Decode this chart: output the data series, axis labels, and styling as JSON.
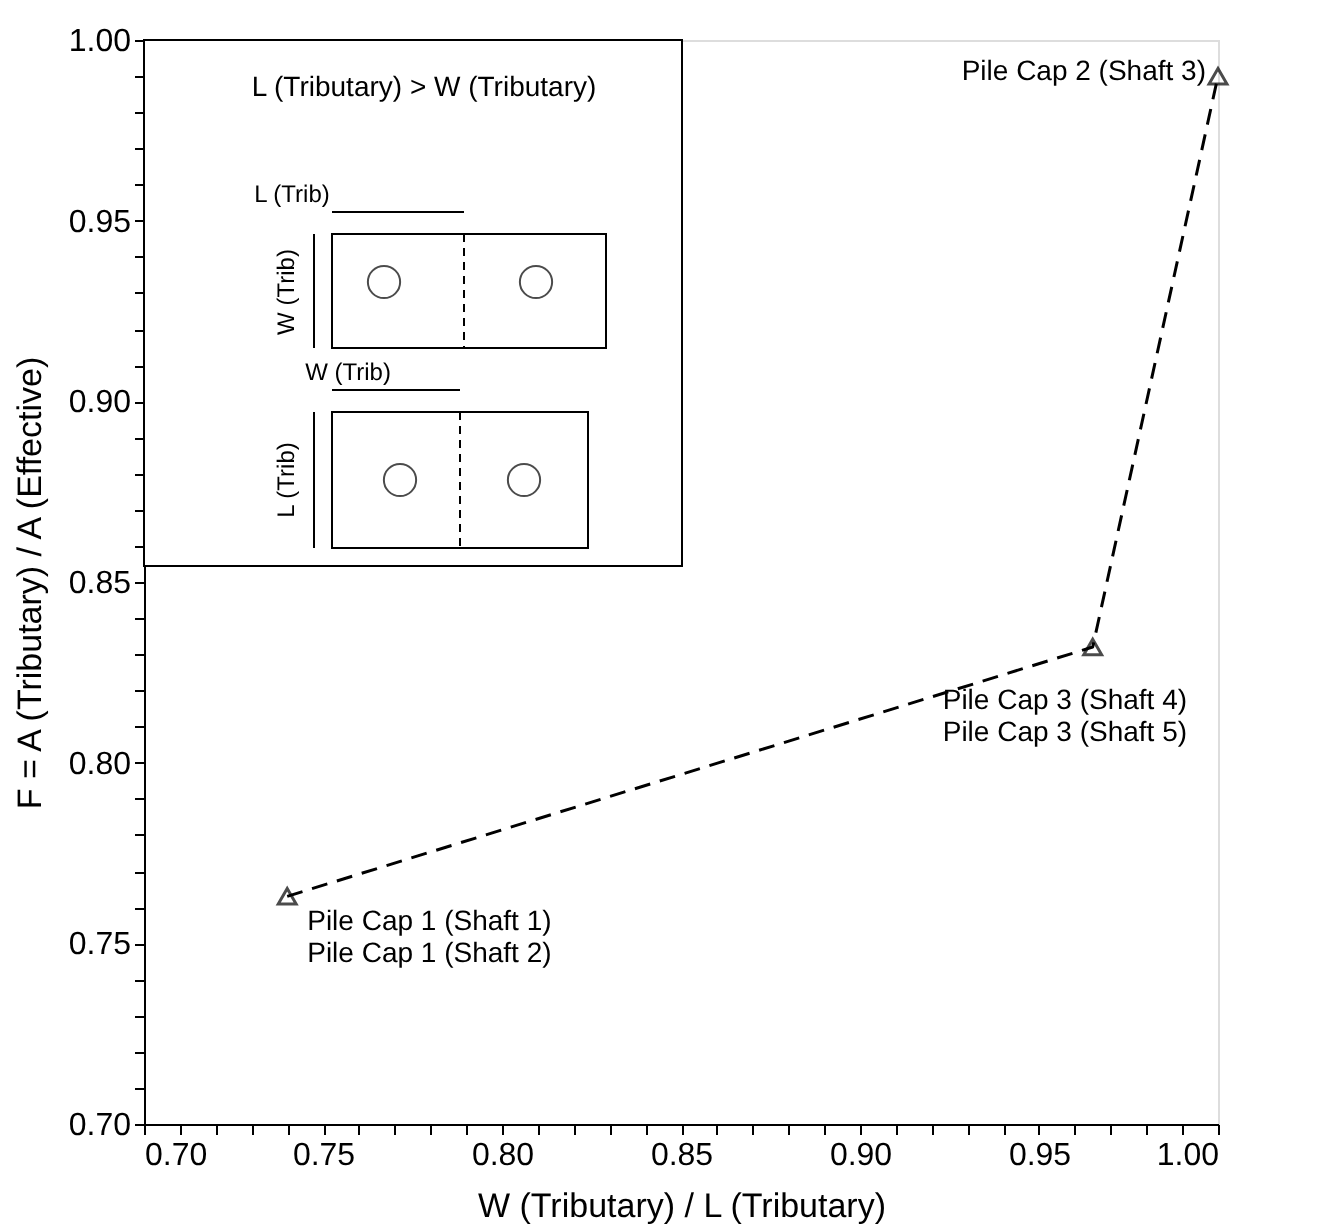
{
  "chart_data": {
    "type": "line",
    "xlabel": "W (Tributary) / L (Tributary)",
    "ylabel": "F = A (Tributary) / A (Effective)",
    "x": [
      0.74,
      0.965,
      1.0
    ],
    "series": [
      {
        "color": "#000000",
        "values": [
          0.763,
          0.832,
          0.99
        ]
      }
    ],
    "marker": "triangle",
    "line_style": "dashed",
    "grid": false,
    "xlim": [
      0.7,
      1.0
    ],
    "ylim": [
      0.7,
      1.0
    ],
    "xticks": [
      {
        "value": 0.7,
        "label": "0.70"
      },
      {
        "value": 0.71,
        "label": null
      },
      {
        "value": 0.72,
        "label": null
      },
      {
        "value": 0.73,
        "label": null
      },
      {
        "value": 0.74,
        "label": null
      },
      {
        "value": 0.75,
        "label": "0.75"
      },
      {
        "value": 0.76,
        "label": null
      },
      {
        "value": 0.77,
        "label": null
      },
      {
        "value": 0.78,
        "label": null
      },
      {
        "value": 0.79,
        "label": null
      },
      {
        "value": 0.8,
        "label": "0.80"
      },
      {
        "value": 0.81,
        "label": null
      },
      {
        "value": 0.82,
        "label": null
      },
      {
        "value": 0.83,
        "label": null
      },
      {
        "value": 0.84,
        "label": null
      },
      {
        "value": 0.85,
        "label": "0.85"
      },
      {
        "value": 0.86,
        "label": null
      },
      {
        "value": 0.87,
        "label": null
      },
      {
        "value": 0.88,
        "label": null
      },
      {
        "value": 0.89,
        "label": null
      },
      {
        "value": 0.9,
        "label": "0.90"
      },
      {
        "value": 0.91,
        "label": null
      },
      {
        "value": 0.92,
        "label": null
      },
      {
        "value": 0.93,
        "label": null
      },
      {
        "value": 0.94,
        "label": null
      },
      {
        "value": 0.95,
        "label": "0.95"
      },
      {
        "value": 0.96,
        "label": null
      },
      {
        "value": 0.97,
        "label": null
      },
      {
        "value": 0.98,
        "label": null
      },
      {
        "value": 0.99,
        "label": null
      },
      {
        "value": 1.0,
        "label": "1.00"
      }
    ],
    "yticks": [
      {
        "value": 0.7,
        "label": "0.70"
      },
      {
        "value": 0.71,
        "label": null
      },
      {
        "value": 0.72,
        "label": null
      },
      {
        "value": 0.73,
        "label": null
      },
      {
        "value": 0.74,
        "label": null
      },
      {
        "value": 0.75,
        "label": "0.75"
      },
      {
        "value": 0.76,
        "label": null
      },
      {
        "value": 0.77,
        "label": null
      },
      {
        "value": 0.78,
        "label": null
      },
      {
        "value": 0.79,
        "label": null
      },
      {
        "value": 0.8,
        "label": "0.80"
      },
      {
        "value": 0.81,
        "label": null
      },
      {
        "value": 0.82,
        "label": null
      },
      {
        "value": 0.83,
        "label": null
      },
      {
        "value": 0.84,
        "label": null
      },
      {
        "value": 0.85,
        "label": "0.85"
      },
      {
        "value": 0.86,
        "label": null
      },
      {
        "value": 0.87,
        "label": null
      },
      {
        "value": 0.88,
        "label": null
      },
      {
        "value": 0.89,
        "label": null
      },
      {
        "value": 0.9,
        "label": "0.90"
      },
      {
        "value": 0.91,
        "label": null
      },
      {
        "value": 0.92,
        "label": null
      },
      {
        "value": 0.93,
        "label": null
      },
      {
        "value": 0.94,
        "label": null
      },
      {
        "value": 0.95,
        "label": "0.95"
      },
      {
        "value": 0.96,
        "label": null
      },
      {
        "value": 0.97,
        "label": null
      },
      {
        "value": 0.98,
        "label": null
      },
      {
        "value": 0.99,
        "label": null
      },
      {
        "value": 1.0,
        "label": "1.00"
      }
    ],
    "annotations": [
      {
        "text": "Pile Cap 2 (Shaft 3)",
        "x": 1.0,
        "y": 0.99
      },
      {
        "text": "Pile Cap 3 (Shaft 4)\nPile Cap 3 (Shaft 5)",
        "x": 0.965,
        "y": 0.832
      },
      {
        "text": "Pile Cap 1 (Shaft 1)\nPile Cap 1 (Shaft 2)",
        "x": 0.74,
        "y": 0.763
      },
      "L (Tributary) > W (Tributary)",
      "L (Trib)",
      "W (Trib)",
      "W (Trib)",
      "L (Trib)"
    ]
  }
}
